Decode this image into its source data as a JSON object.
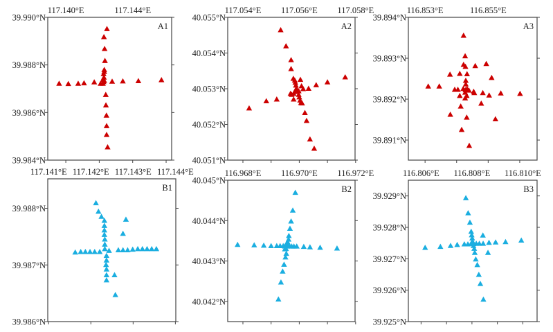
{
  "chart_data": [
    {
      "type": "scatter",
      "title": "A1",
      "color": "#cc0000",
      "xlim": [
        117.13892,
        117.14633
      ],
      "ylim": [
        39.984,
        39.99
      ],
      "xticks": [
        117.14,
        117.142,
        117.144,
        117.146
      ],
      "xticklabels": [
        "117.140°E",
        "",
        "117.144°E",
        ""
      ],
      "yticks": [
        39.99,
        39.988,
        39.986,
        39.984
      ],
      "yticklabels": [
        "39.990°N",
        "39.988°N",
        "39.986°N",
        "39.984°N"
      ],
      "points": [
        [
          117.14246,
          39.98951
        ],
        [
          117.14228,
          39.98917
        ],
        [
          117.14232,
          39.98867
        ],
        [
          117.14234,
          39.98817
        ],
        [
          117.1423,
          39.98779
        ],
        [
          117.1423,
          39.98771
        ],
        [
          117.14226,
          39.98762
        ],
        [
          117.14228,
          39.98747
        ],
        [
          117.14222,
          39.98737
        ],
        [
          117.1423,
          39.98733
        ],
        [
          117.14226,
          39.98728
        ],
        [
          117.14239,
          39.98674
        ],
        [
          117.1424,
          39.9863
        ],
        [
          117.14243,
          39.98587
        ],
        [
          117.14244,
          39.98543
        ],
        [
          117.14244,
          39.98506
        ],
        [
          117.1425,
          39.98454
        ],
        [
          117.1396,
          39.98721
        ],
        [
          117.14015,
          39.9872
        ],
        [
          117.14074,
          39.98721
        ],
        [
          117.14109,
          39.98723
        ],
        [
          117.1417,
          39.98727
        ],
        [
          117.14208,
          39.98721
        ],
        [
          117.14222,
          39.98721
        ],
        [
          117.14277,
          39.9873
        ],
        [
          117.14341,
          39.98731
        ],
        [
          117.14434,
          39.98732
        ],
        [
          117.14572,
          39.98736
        ]
      ]
    },
    {
      "type": "scatter",
      "title": "A2",
      "color": "#cc0000",
      "xlim": [
        117.05346,
        117.05798
      ],
      "ylim": [
        40.051,
        40.055
      ],
      "xticks": [
        117.054,
        117.055,
        117.056,
        117.057,
        117.058
      ],
      "xticklabels": [
        "117.054°E",
        "",
        "117.056°E",
        "",
        "117.058°E"
      ],
      "yticks": [
        40.055,
        40.054,
        40.053,
        40.052,
        40.051
      ],
      "yticklabels": [
        "40.055°N",
        "40.054°N",
        "40.053°N",
        "40.052°N",
        "40.051°N"
      ],
      "points": [
        [
          117.05534,
          40.05464
        ],
        [
          117.05553,
          40.05419
        ],
        [
          117.05571,
          40.0538
        ],
        [
          117.05571,
          40.05355
        ],
        [
          117.05579,
          40.05328
        ],
        [
          117.05584,
          40.05323
        ],
        [
          117.05586,
          40.05317
        ],
        [
          117.05588,
          40.05309
        ],
        [
          117.05604,
          40.05325
        ],
        [
          117.05608,
          40.05307
        ],
        [
          117.05614,
          40.05299
        ],
        [
          117.05633,
          40.053
        ],
        [
          117.0566,
          40.0531
        ],
        [
          117.057,
          40.05318
        ],
        [
          117.05763,
          40.05332
        ],
        [
          117.05589,
          40.05299
        ],
        [
          117.05593,
          40.05296
        ],
        [
          117.05598,
          40.05293
        ],
        [
          117.05585,
          40.05291
        ],
        [
          117.0558,
          40.05286
        ],
        [
          117.05569,
          40.05286
        ],
        [
          117.05573,
          40.05283
        ],
        [
          117.05598,
          40.05283
        ],
        [
          117.056,
          40.05276
        ],
        [
          117.05603,
          40.05267
        ],
        [
          117.05606,
          40.0526
        ],
        [
          117.0561,
          40.05259
        ],
        [
          117.0558,
          40.0527
        ],
        [
          117.0562,
          40.05232
        ],
        [
          117.05626,
          40.0521
        ],
        [
          117.05638,
          40.05158
        ],
        [
          117.05653,
          40.05132
        ],
        [
          117.0552,
          40.0527
        ],
        [
          117.05483,
          40.05265
        ],
        [
          117.05422,
          40.05245
        ]
      ]
    },
    {
      "type": "scatter",
      "title": "A3",
      "color": "#cc0000",
      "xlim": [
        116.85247,
        116.85655
      ],
      "ylim": [
        39.89051,
        39.894
      ],
      "xticks": [
        116.853,
        116.854,
        116.855,
        116.856
      ],
      "xticklabels": [
        "116.853°E",
        "",
        "116.855°E",
        ""
      ],
      "yticks": [
        39.894,
        39.893,
        39.892,
        39.891
      ],
      "yticklabels": [
        "39.894°N",
        "39.893°N",
        "39.892°N",
        "39.891°N"
      ],
      "points": [
        [
          116.85422,
          39.89355
        ],
        [
          116.85427,
          39.89305
        ],
        [
          116.85422,
          39.89284
        ],
        [
          116.85428,
          39.89279
        ],
        [
          116.85459,
          39.89281
        ],
        [
          116.85494,
          39.89286
        ],
        [
          116.85379,
          39.8926
        ],
        [
          116.8541,
          39.89262
        ],
        [
          116.85433,
          39.89261
        ],
        [
          116.85511,
          39.89252
        ],
        [
          116.8531,
          39.89231
        ],
        [
          116.85345,
          39.89231
        ],
        [
          116.85429,
          39.89245
        ],
        [
          116.85429,
          39.89236
        ],
        [
          116.85394,
          39.89223
        ],
        [
          116.85404,
          39.89223
        ],
        [
          116.85421,
          39.89225
        ],
        [
          116.85428,
          39.89222
        ],
        [
          116.85433,
          39.89225
        ],
        [
          116.85439,
          39.89221
        ],
        [
          116.85427,
          39.89216
        ],
        [
          116.85454,
          39.89218
        ],
        [
          116.85456,
          39.89215
        ],
        [
          116.85483,
          39.89215
        ],
        [
          116.85503,
          39.89209
        ],
        [
          116.8554,
          39.89214
        ],
        [
          116.85601,
          39.89213
        ],
        [
          116.8541,
          39.89208
        ],
        [
          116.85432,
          39.89208
        ],
        [
          116.85427,
          39.89202
        ],
        [
          116.85478,
          39.89189
        ],
        [
          116.85413,
          39.89182
        ],
        [
          116.8538,
          39.89162
        ],
        [
          116.85432,
          39.89155
        ],
        [
          116.85523,
          39.89151
        ],
        [
          116.85416,
          39.89125
        ],
        [
          116.8544,
          39.89086
        ]
      ]
    },
    {
      "type": "scatter",
      "title": "B1",
      "color": "#1aaee0",
      "xlim": [
        117.14098,
        117.14401
      ],
      "ylim": [
        39.986,
        39.98852
      ],
      "xticks": [
        117.141,
        117.142,
        117.143,
        117.144
      ],
      "xticklabels": [
        "117.141°E",
        "117.142°E",
        "117.143°E",
        "117.144°E"
      ],
      "yticks": [
        39.988,
        39.987,
        39.986
      ],
      "yticklabels": [
        "39.988°N",
        "39.987°N",
        "39.986°N"
      ],
      "points": [
        [
          117.14212,
          39.98809
        ],
        [
          117.14218,
          39.98794
        ],
        [
          117.14225,
          39.98785
        ],
        [
          117.14232,
          39.98778
        ],
        [
          117.14232,
          39.98769
        ],
        [
          117.14232,
          39.98761
        ],
        [
          117.14232,
          39.98753
        ],
        [
          117.14233,
          39.98745
        ],
        [
          117.14233,
          39.98736
        ],
        [
          117.14233,
          39.98728
        ],
        [
          117.14243,
          39.98725
        ],
        [
          117.14237,
          39.98716
        ],
        [
          117.14237,
          39.98708
        ],
        [
          117.14236,
          39.987
        ],
        [
          117.14237,
          39.98692
        ],
        [
          117.14237,
          39.98682
        ],
        [
          117.14237,
          39.98673
        ],
        [
          117.14256,
          39.98682
        ],
        [
          117.14258,
          39.98647
        ],
        [
          117.14276,
          39.98755
        ],
        [
          117.14283,
          39.9878
        ],
        [
          117.14163,
          39.98722
        ],
        [
          117.14176,
          39.98723
        ],
        [
          117.14187,
          39.98723
        ],
        [
          117.14198,
          39.98723
        ],
        [
          117.14209,
          39.98723
        ],
        [
          117.14221,
          39.98723
        ],
        [
          117.14265,
          39.98726
        ],
        [
          117.14276,
          39.98726
        ],
        [
          117.14287,
          39.98726
        ],
        [
          117.14299,
          39.98727
        ],
        [
          117.14311,
          39.98728
        ],
        [
          117.14322,
          39.98728
        ],
        [
          117.14333,
          39.98728
        ],
        [
          117.14344,
          39.98728
        ],
        [
          117.14355,
          39.98728
        ]
      ]
    },
    {
      "type": "scatter",
      "title": "B2",
      "color": "#1aaee0",
      "xlim": [
        116.96746,
        116.97198
      ],
      "ylim": [
        40.0415,
        40.045
      ],
      "xticks": [
        116.968,
        116.969,
        116.97,
        116.971,
        116.972
      ],
      "xticklabels": [
        "116.968°E",
        "",
        "116.970°E",
        "",
        "116.972°E"
      ],
      "yticks": [
        40.045,
        40.044,
        40.043,
        40.042
      ],
      "yticklabels": [
        "40.045°N",
        "40.044°N",
        "40.043°N",
        "40.042°N"
      ],
      "points": [
        [
          116.96986,
          40.04469
        ],
        [
          116.96977,
          40.04425
        ],
        [
          116.96971,
          40.04398
        ],
        [
          116.96967,
          40.0438
        ],
        [
          116.96963,
          40.04362
        ],
        [
          116.96962,
          40.04353
        ],
        [
          116.96959,
          40.04346
        ],
        [
          116.96955,
          40.04343
        ],
        [
          116.96953,
          40.04339
        ],
        [
          116.96957,
          40.04336
        ],
        [
          116.96965,
          40.04337
        ],
        [
          116.96973,
          40.04336
        ],
        [
          116.96981,
          40.04336
        ],
        [
          116.96991,
          40.04336
        ],
        [
          116.96781,
          40.0434
        ],
        [
          116.9684,
          40.04339
        ],
        [
          116.96874,
          40.04338
        ],
        [
          116.969,
          40.04337
        ],
        [
          116.9692,
          40.04337
        ],
        [
          116.96932,
          40.04337
        ],
        [
          116.96943,
          40.04337
        ],
        [
          116.96949,
          40.04336
        ],
        [
          116.97016,
          40.04335
        ],
        [
          116.97038,
          40.04334
        ],
        [
          116.97074,
          40.04333
        ],
        [
          116.97134,
          40.04331
        ],
        [
          116.96953,
          40.0433
        ],
        [
          116.96949,
          40.04329
        ],
        [
          116.96954,
          40.04318
        ],
        [
          116.96951,
          40.04309
        ],
        [
          116.96946,
          40.04291
        ],
        [
          116.96941,
          40.04274
        ],
        [
          116.96935,
          40.04247
        ],
        [
          116.96926,
          40.04205
        ]
      ]
    },
    {
      "type": "scatter",
      "title": "B3",
      "color": "#1aaee0",
      "xlim": [
        116.8055,
        116.81056
      ],
      "ylim": [
        39.925,
        39.9295
      ],
      "xticks": [
        116.806,
        116.807,
        116.808,
        116.809,
        116.81
      ],
      "xticklabels": [
        "116.806°E",
        "",
        "116.808°E",
        "",
        "116.810°E"
      ],
      "yticks": [
        39.929,
        39.928,
        39.927,
        39.926,
        39.925
      ],
      "yticklabels": [
        "39.929°N",
        "39.928°N",
        "39.927°N",
        "39.926°N",
        "39.925°N"
      ],
      "points": [
        [
          116.80776,
          39.92893
        ],
        [
          116.80785,
          39.92845
        ],
        [
          116.80792,
          39.92815
        ],
        [
          116.80797,
          39.92786
        ],
        [
          116.80799,
          39.92775
        ],
        [
          116.80801,
          39.92765
        ],
        [
          116.80802,
          39.92755
        ],
        [
          116.80843,
          39.92774
        ],
        [
          116.80616,
          39.92735
        ],
        [
          116.80676,
          39.92738
        ],
        [
          116.80716,
          39.92741
        ],
        [
          116.80742,
          39.92744
        ],
        [
          116.8077,
          39.92746
        ],
        [
          116.80784,
          39.92746
        ],
        [
          116.80797,
          39.92748
        ],
        [
          116.80802,
          39.92748
        ],
        [
          116.80806,
          39.92747
        ],
        [
          116.80817,
          39.92748
        ],
        [
          116.80829,
          39.92748
        ],
        [
          116.80844,
          39.92748
        ],
        [
          116.80867,
          39.92751
        ],
        [
          116.80893,
          39.92752
        ],
        [
          116.80932,
          39.92753
        ],
        [
          116.80994,
          39.92758
        ],
        [
          116.80806,
          39.92741
        ],
        [
          116.80809,
          39.92732
        ],
        [
          116.80811,
          39.92719
        ],
        [
          116.80863,
          39.92719
        ],
        [
          116.80815,
          39.92698
        ],
        [
          116.80821,
          39.9268
        ],
        [
          116.80827,
          39.92649
        ],
        [
          116.80833,
          39.9262
        ],
        [
          116.80845,
          39.9257
        ]
      ]
    }
  ]
}
